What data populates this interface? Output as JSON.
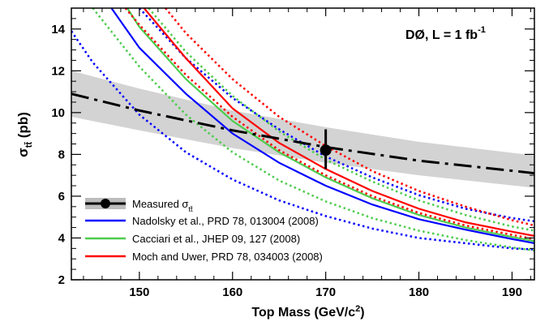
{
  "chart_data": {
    "type": "line",
    "annotation": {
      "experiment": "DØ, L = 1 fb",
      "exponent": "-1"
    },
    "xlabel": {
      "main": "Top Mass (GeV/c",
      "sup": "2",
      "close": ")"
    },
    "ylabel": {
      "main": "σ",
      "sub": "tt̄",
      "unit": " (pb)"
    },
    "xlim": [
      142.7,
      192.4
    ],
    "ylim": [
      2,
      15
    ],
    "xticks": [
      150,
      160,
      170,
      180,
      190
    ],
    "yticks": [
      2,
      4,
      6,
      8,
      10,
      12,
      14
    ],
    "grid": false,
    "legend_position": "bottom-left",
    "measured": {
      "label": "Measured σ",
      "label_sub": "tt̄",
      "color": "#000000",
      "band": {
        "x": [
          142.7,
          150,
          160,
          170,
          180,
          192.4
        ],
        "lower": [
          9.8,
          9.15,
          8.3,
          7.6,
          7.0,
          6.4
        ],
        "upper": [
          12.0,
          11.15,
          10.1,
          9.3,
          8.6,
          7.95
        ],
        "color": "#d3d3d3"
      },
      "central": {
        "x": [
          142.7,
          150,
          160,
          170,
          180,
          192.4
        ],
        "y": [
          10.9,
          10.1,
          9.15,
          8.35,
          7.7,
          7.1
        ]
      },
      "point": {
        "x": 170,
        "y": 8.2,
        "yerr_low": 7.3,
        "yerr_high": 9.2
      }
    },
    "series": [
      {
        "name": "Nadolsky et al., PRD 78, 013004 (2008)",
        "color": "#0000ff",
        "central": {
          "x": [
            147,
            150,
            155,
            160,
            165,
            170,
            175,
            180,
            185,
            190,
            192.4
          ],
          "y": [
            15.0,
            13.1,
            10.9,
            9.0,
            7.6,
            6.5,
            5.6,
            4.9,
            4.4,
            3.95,
            3.75
          ]
        },
        "lower": {
          "x": [
            142.7,
            145,
            150,
            155,
            160,
            165,
            170,
            175,
            180,
            185,
            190,
            192.4
          ],
          "y": [
            13.9,
            12.4,
            9.9,
            8.1,
            6.8,
            5.8,
            5.05,
            4.45,
            4.0,
            3.75,
            3.5,
            3.45
          ]
        },
        "upper": {
          "x": [
            150,
            155,
            160,
            165,
            170,
            175,
            180,
            185,
            190,
            192.4
          ],
          "y": [
            15.0,
            12.6,
            10.7,
            9.2,
            7.9,
            6.9,
            6.05,
            5.4,
            4.95,
            4.8
          ]
        }
      },
      {
        "name": "Cacciari et al., JHEP 09, 127 (2008)",
        "color": "#4ccc4c",
        "central": {
          "x": [
            148.7,
            150,
            155,
            160,
            165,
            170,
            175,
            180,
            185,
            190,
            192.4
          ],
          "y": [
            15.0,
            14.1,
            11.6,
            9.6,
            8.1,
            6.9,
            5.9,
            5.1,
            4.5,
            4.05,
            3.85
          ]
        },
        "lower": {
          "x": [
            145,
            150,
            155,
            160,
            165,
            170,
            175,
            180,
            185,
            190,
            192.4
          ],
          "y": [
            15.0,
            12.2,
            9.9,
            8.1,
            6.75,
            5.75,
            4.95,
            4.35,
            3.9,
            3.55,
            3.4
          ]
        },
        "upper": {
          "x": [
            151,
            155,
            160,
            165,
            170,
            175,
            180,
            185,
            190,
            192.4
          ],
          "y": [
            15.0,
            12.9,
            10.8,
            9.1,
            7.75,
            6.7,
            5.8,
            5.1,
            4.55,
            4.35
          ]
        }
      },
      {
        "name": "Moch and Uwer, PRD 78, 034003 (2008)",
        "color": "#ff0000",
        "central": {
          "x": [
            150.5,
            155,
            160,
            165,
            170,
            175,
            180,
            185,
            190,
            192.4
          ],
          "y": [
            15.0,
            12.6,
            10.2,
            8.55,
            7.3,
            6.25,
            5.4,
            4.75,
            4.3,
            4.1
          ]
        },
        "lower": {
          "x": [
            148.5,
            150,
            155,
            160,
            165,
            170,
            175,
            180,
            185,
            190,
            192.4
          ],
          "y": [
            15.0,
            14.2,
            11.8,
            9.8,
            8.2,
            7.0,
            6.0,
            5.2,
            4.6,
            4.15,
            3.95
          ]
        },
        "upper": {
          "x": [
            152.8,
            155,
            160,
            165,
            170,
            175,
            180,
            185,
            190,
            192.4
          ],
          "y": [
            15.0,
            13.8,
            11.6,
            9.8,
            8.4,
            7.2,
            6.25,
            5.5,
            4.85,
            4.6
          ]
        }
      }
    ]
  }
}
